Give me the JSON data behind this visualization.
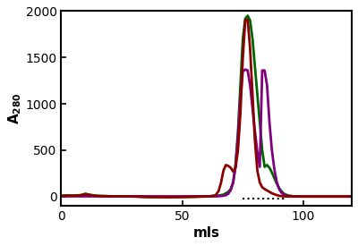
{
  "title": "",
  "xlabel": "mls",
  "ylabel": "A_280",
  "xlim": [
    0,
    120
  ],
  "ylim": [
    -100,
    2000
  ],
  "yticks": [
    0,
    500,
    1000,
    1500,
    2000
  ],
  "xticks": [
    0,
    50,
    100
  ],
  "bg_color": "#ffffff",
  "dotted_line": {
    "x_start": 75,
    "x_end": 93,
    "y": -20
  },
  "series": [
    {
      "name": "green",
      "color": "#006400",
      "linewidth": 2.0,
      "points": [
        [
          0,
          8
        ],
        [
          2,
          12
        ],
        [
          4,
          10
        ],
        [
          6,
          12
        ],
        [
          8,
          15
        ],
        [
          10,
          30
        ],
        [
          12,
          18
        ],
        [
          14,
          10
        ],
        [
          16,
          6
        ],
        [
          18,
          5
        ],
        [
          20,
          3
        ],
        [
          25,
          2
        ],
        [
          30,
          1
        ],
        [
          35,
          -5
        ],
        [
          40,
          -7
        ],
        [
          45,
          -7
        ],
        [
          50,
          -5
        ],
        [
          55,
          -3
        ],
        [
          57,
          -1
        ],
        [
          59,
          0
        ],
        [
          61,
          2
        ],
        [
          63,
          5
        ],
        [
          65,
          10
        ],
        [
          67,
          20
        ],
        [
          69,
          50
        ],
        [
          70,
          80
        ],
        [
          71,
          150
        ],
        [
          72,
          350
        ],
        [
          73,
          700
        ],
        [
          74,
          1200
        ],
        [
          75,
          1700
        ],
        [
          76,
          1920
        ],
        [
          77,
          1950
        ],
        [
          78,
          1900
        ],
        [
          79,
          1700
        ],
        [
          80,
          1400
        ],
        [
          81,
          1100
        ],
        [
          82,
          800
        ],
        [
          83,
          500
        ],
        [
          84,
          320
        ],
        [
          85,
          340
        ],
        [
          86,
          310
        ],
        [
          87,
          260
        ],
        [
          88,
          200
        ],
        [
          89,
          140
        ],
        [
          90,
          90
        ],
        [
          91,
          55
        ],
        [
          92,
          30
        ],
        [
          93,
          18
        ],
        [
          94,
          10
        ],
        [
          95,
          6
        ],
        [
          96,
          3
        ],
        [
          98,
          1
        ],
        [
          100,
          0
        ],
        [
          110,
          0
        ],
        [
          120,
          0
        ]
      ]
    },
    {
      "name": "darkred",
      "color": "#8B0000",
      "linewidth": 2.0,
      "points": [
        [
          0,
          5
        ],
        [
          2,
          10
        ],
        [
          4,
          10
        ],
        [
          6,
          10
        ],
        [
          8,
          12
        ],
        [
          10,
          25
        ],
        [
          12,
          15
        ],
        [
          14,
          8
        ],
        [
          16,
          5
        ],
        [
          18,
          4
        ],
        [
          20,
          3
        ],
        [
          25,
          2
        ],
        [
          30,
          0
        ],
        [
          35,
          -5
        ],
        [
          40,
          -6
        ],
        [
          45,
          -7
        ],
        [
          50,
          -5
        ],
        [
          55,
          -3
        ],
        [
          57,
          -1
        ],
        [
          59,
          0
        ],
        [
          61,
          2
        ],
        [
          63,
          8
        ],
        [
          64,
          20
        ],
        [
          65,
          60
        ],
        [
          66,
          150
        ],
        [
          67,
          280
        ],
        [
          68,
          340
        ],
        [
          69,
          330
        ],
        [
          70,
          310
        ],
        [
          71,
          270
        ],
        [
          72,
          310
        ],
        [
          73,
          500
        ],
        [
          74,
          900
        ],
        [
          75,
          1500
        ],
        [
          76,
          1900
        ],
        [
          77,
          1910
        ],
        [
          78,
          1600
        ],
        [
          79,
          1100
        ],
        [
          80,
          600
        ],
        [
          81,
          280
        ],
        [
          82,
          150
        ],
        [
          83,
          100
        ],
        [
          84,
          80
        ],
        [
          85,
          65
        ],
        [
          86,
          50
        ],
        [
          87,
          35
        ],
        [
          88,
          25
        ],
        [
          89,
          15
        ],
        [
          90,
          8
        ],
        [
          91,
          4
        ],
        [
          92,
          2
        ],
        [
          93,
          1
        ],
        [
          94,
          0
        ],
        [
          96,
          0
        ],
        [
          100,
          0
        ],
        [
          120,
          0
        ]
      ]
    },
    {
      "name": "purple",
      "color": "#800080",
      "linewidth": 2.0,
      "points": [
        [
          0,
          2
        ],
        [
          5,
          2
        ],
        [
          10,
          2
        ],
        [
          15,
          2
        ],
        [
          20,
          2
        ],
        [
          25,
          2
        ],
        [
          30,
          2
        ],
        [
          35,
          2
        ],
        [
          40,
          2
        ],
        [
          45,
          2
        ],
        [
          50,
          2
        ],
        [
          55,
          2
        ],
        [
          60,
          2
        ],
        [
          62,
          2
        ],
        [
          64,
          2
        ],
        [
          65,
          3
        ],
        [
          66,
          5
        ],
        [
          67,
          8
        ],
        [
          68,
          15
        ],
        [
          69,
          30
        ],
        [
          70,
          70
        ],
        [
          71,
          150
        ],
        [
          72,
          320
        ],
        [
          73,
          650
        ],
        [
          74,
          1050
        ],
        [
          75,
          1350
        ],
        [
          76,
          1370
        ],
        [
          77,
          1360
        ],
        [
          78,
          1200
        ],
        [
          79,
          950
        ],
        [
          80,
          700
        ],
        [
          81,
          480
        ],
        [
          82,
          320
        ],
        [
          83,
          1360
        ],
        [
          84,
          1360
        ],
        [
          85,
          1200
        ],
        [
          86,
          800
        ],
        [
          87,
          500
        ],
        [
          88,
          300
        ],
        [
          89,
          160
        ],
        [
          90,
          80
        ],
        [
          91,
          40
        ],
        [
          92,
          20
        ],
        [
          93,
          10
        ],
        [
          94,
          5
        ],
        [
          95,
          2
        ],
        [
          96,
          1
        ],
        [
          98,
          0
        ],
        [
          100,
          0
        ],
        [
          110,
          0
        ],
        [
          120,
          0
        ]
      ]
    }
  ]
}
